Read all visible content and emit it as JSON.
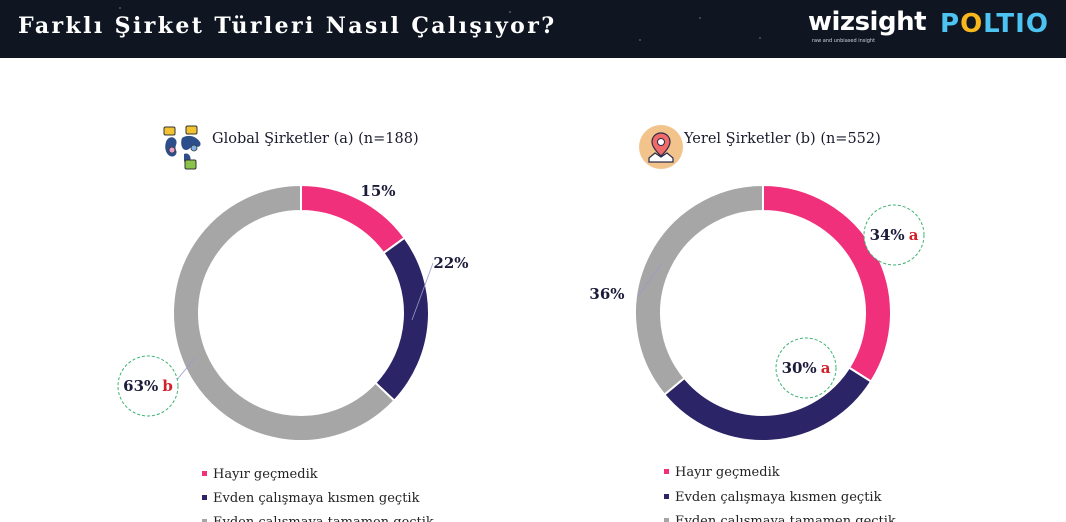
{
  "header": {
    "title": "Farklı Şirket Türleri Nasıl Çalışıyor?",
    "logo_wizsight": "wizsight",
    "logo_wizsight_tagline": "raw and unbiased insight",
    "logo_poltio": "POLTIO"
  },
  "colors": {
    "hayir": "#f0307a",
    "kismen": "#2b2466",
    "tamamen": "#a6a6a6",
    "header_bg": "#0f1621",
    "significance_letter": "#d0202a",
    "significance_circle": "#3cb371"
  },
  "icons": {
    "global": "world-map-chat-icon",
    "local": "location-pin-icon"
  },
  "legend": [
    {
      "label": "Hayır geçmedik",
      "color": "#f0307a"
    },
    {
      "label": "Evden çalışmaya kısmen geçtik",
      "color": "#2b2466"
    },
    {
      "label": "Evden çalışmaya tamamen geçtik",
      "color": "#a6a6a6"
    }
  ],
  "chart_data": [
    {
      "type": "pie",
      "style": "donut",
      "title": "Global Şirketler (a) (n=188)",
      "categories": [
        "Hayır geçmedik",
        "Evden çalışmaya kısmen geçtik",
        "Evden çalışmaya tamamen geçtik"
      ],
      "values": [
        15,
        22,
        63
      ],
      "labels": [
        "15%",
        "22%",
        "63%"
      ],
      "significance": [
        "",
        "",
        "b"
      ]
    },
    {
      "type": "pie",
      "style": "donut",
      "title": "Yerel Şirketler (b) (n=552)",
      "categories": [
        "Hayır geçmedik",
        "Evden çalışmaya kısmen geçtik",
        "Evden çalışmaya tamamen geçtik"
      ],
      "values": [
        34,
        30,
        36
      ],
      "labels": [
        "34%",
        "30%",
        "36%"
      ],
      "significance": [
        "a",
        "a",
        ""
      ]
    }
  ]
}
